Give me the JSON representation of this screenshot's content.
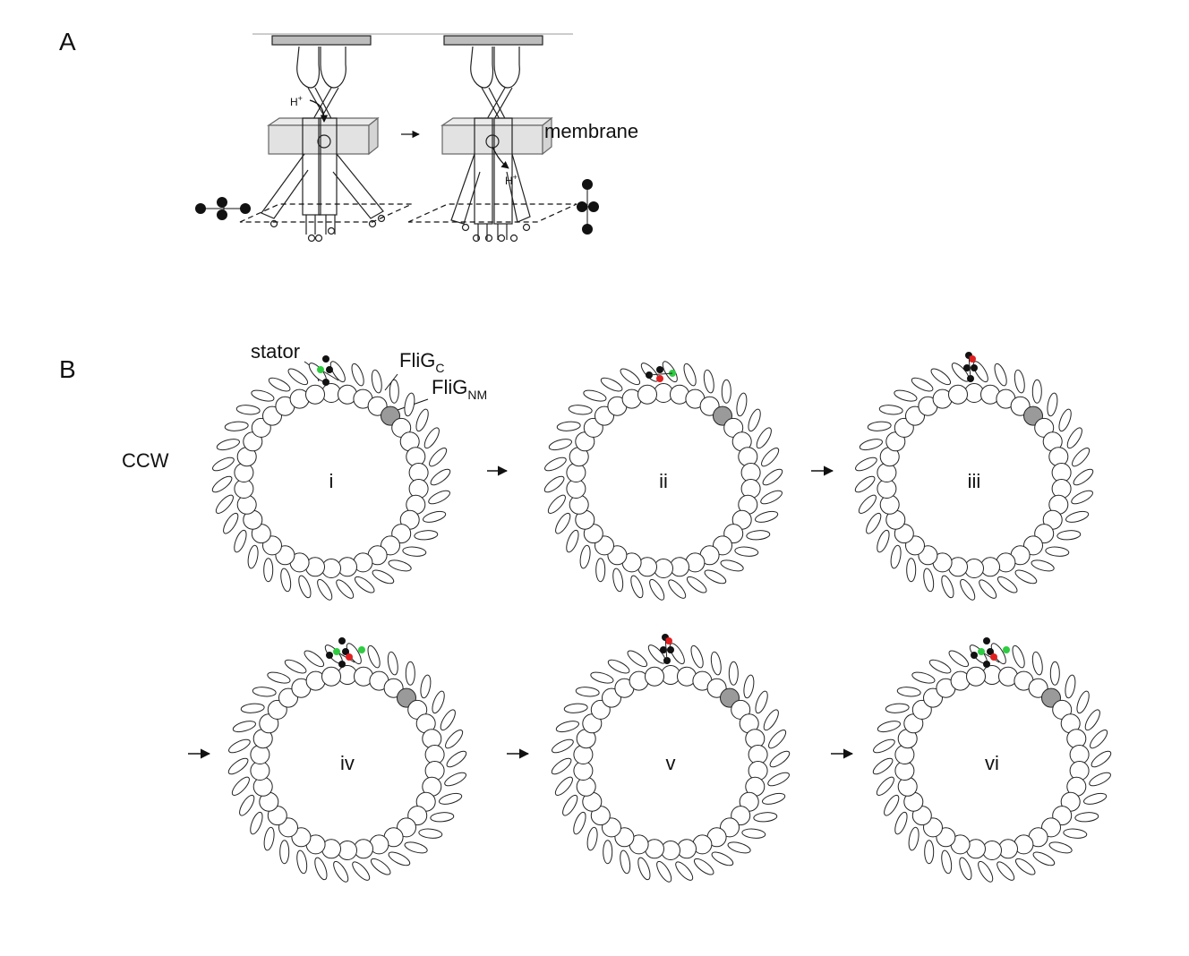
{
  "panel_a": {
    "label": "A",
    "membrane_label": "membrane",
    "proton_label": "H",
    "proton_sup": "+"
  },
  "panel_b": {
    "label": "B",
    "direction_label": "CCW",
    "stator_label": "stator",
    "fligc_label": "FliG",
    "fligc_sub": "C",
    "flignm_label": "FliG",
    "flignm_sub": "NM",
    "stages": [
      {
        "label": "i"
      },
      {
        "label": "ii"
      },
      {
        "label": "iii"
      },
      {
        "label": "iv"
      },
      {
        "label": "v"
      },
      {
        "label": "vi"
      }
    ]
  },
  "colors": {
    "ink": "#111111",
    "marked_subunit": "#9a9a9a",
    "red_site": "#e02020",
    "green_site": "#2ecc40",
    "membrane_fill": "#e6e6e6"
  }
}
